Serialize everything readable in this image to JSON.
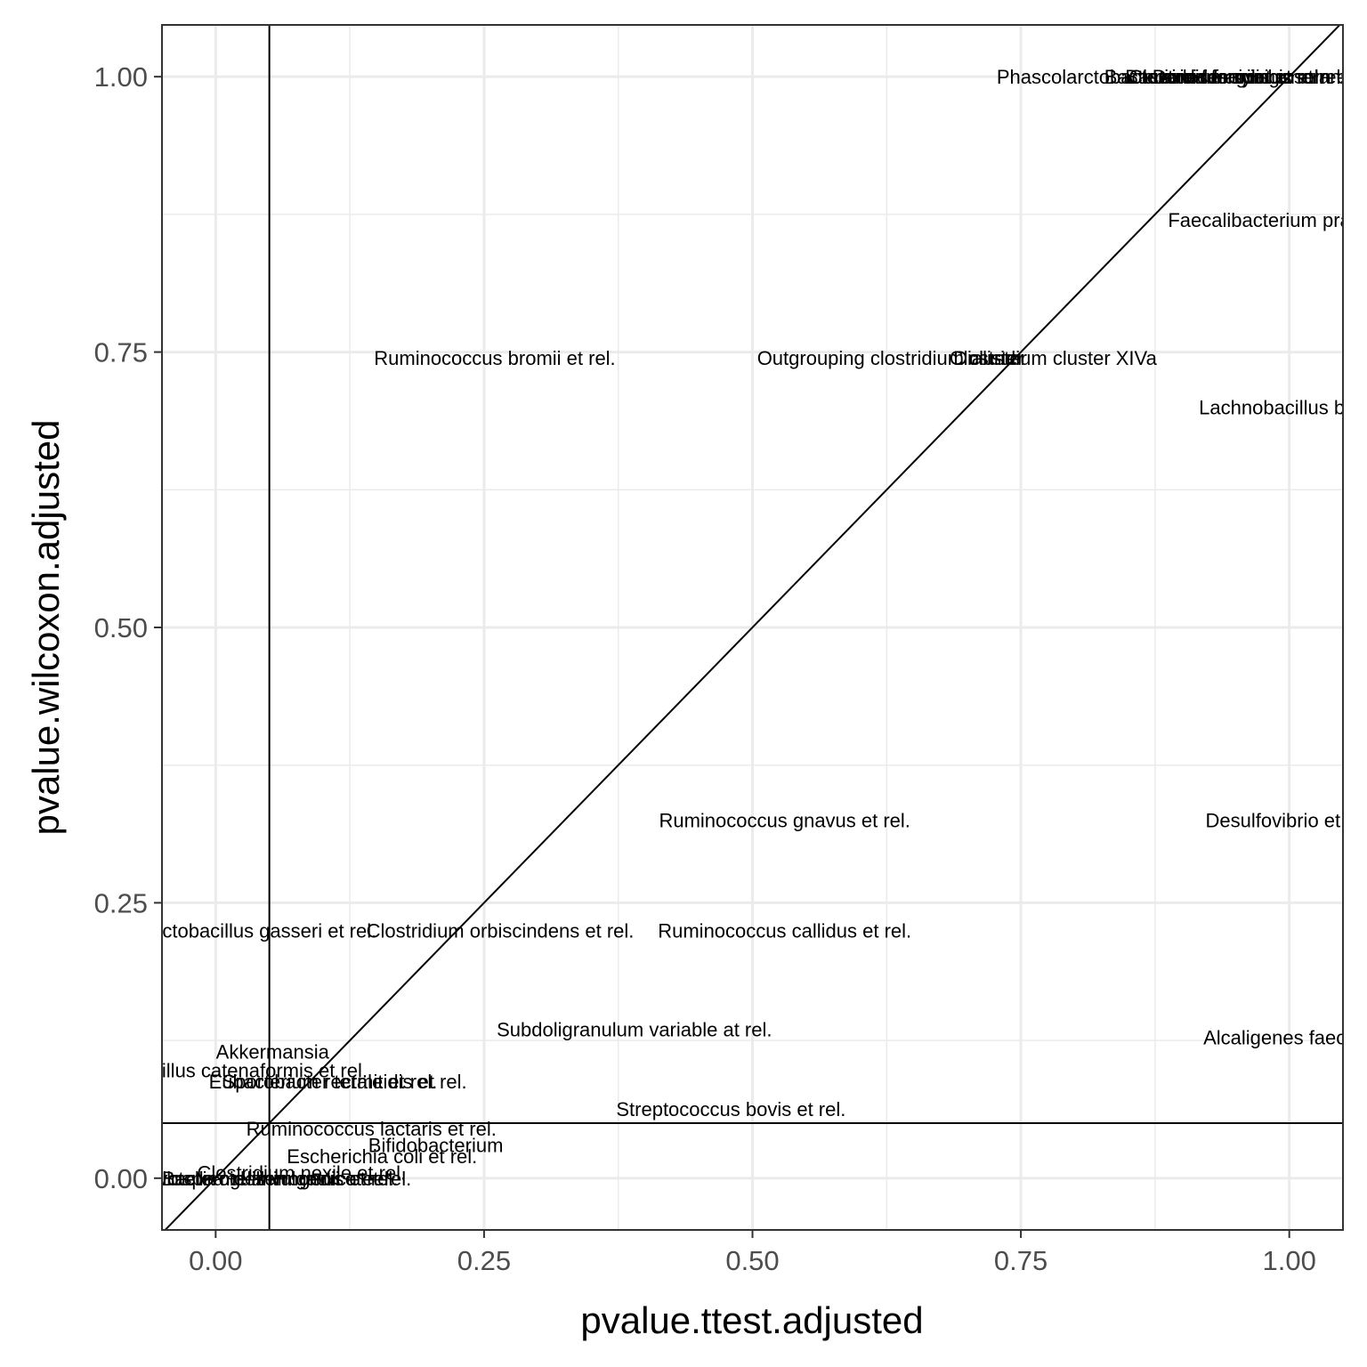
{
  "chart_data": {
    "type": "scatter",
    "xlabel": "pvalue.ttest.adjusted",
    "ylabel": "pvalue.wilcoxon.adjusted",
    "xlim": [
      -0.05,
      1.05
    ],
    "ylim": [
      -0.047,
      1.047
    ],
    "x_ticks": [
      0.0,
      0.25,
      0.5,
      0.75,
      1.0
    ],
    "y_ticks": [
      0.0,
      0.25,
      0.5,
      0.75,
      1.0
    ],
    "x_tick_labels": [
      "0.00",
      "0.25",
      "0.50",
      "0.75",
      "1.00"
    ],
    "y_tick_labels": [
      "0.00",
      "0.25",
      "0.50",
      "0.75",
      "1.00"
    ],
    "grid": true,
    "theme": "bw",
    "reference_lines": {
      "vline_x": 0.05,
      "hline_y": 0.05,
      "diagonal": true
    },
    "points": [
      {
        "label": "Ruminococcus bromii et rel.",
        "x": 0.26,
        "y": 0.745
      },
      {
        "label": "Outgrouping clostridium cluster",
        "x": 0.63,
        "y": 0.745
      },
      {
        "label": "Dialister",
        "x": 0.72,
        "y": 0.745
      },
      {
        "label": "Clostridium cluster XIVa",
        "x": 0.78,
        "y": 0.745
      },
      {
        "label": "Lachnobacillus bovis",
        "x": 1.0,
        "y": 0.7
      },
      {
        "label": "Faecalibacterium prausnitzii",
        "x": 1.0,
        "y": 0.87
      },
      {
        "label": "Ruminococcus gnavus et rel.",
        "x": 0.53,
        "y": 0.325
      },
      {
        "label": "Desulfovibrio et rel.",
        "x": 1.0,
        "y": 0.325
      },
      {
        "label": "Lactobacillus gasseri et rel.",
        "x": 0.04,
        "y": 0.225
      },
      {
        "label": "Clostridium orbiscindens et rel.",
        "x": 0.265,
        "y": 0.225
      },
      {
        "label": "Ruminococcus callidus et rel.",
        "x": 0.53,
        "y": 0.225
      },
      {
        "label": "Subdoligranulum variable at rel.",
        "x": 0.39,
        "y": 0.135
      },
      {
        "label": "Alcaligenes faecalis",
        "x": 1.0,
        "y": 0.128
      },
      {
        "label": "Akkermansia",
        "x": 0.053,
        "y": 0.115
      },
      {
        "label": "Bacillus catenaformis et rel.",
        "x": 0.03,
        "y": 0.098
      },
      {
        "label": "Sporobacter termitidis et rel.",
        "x": 0.12,
        "y": 0.088
      },
      {
        "label": "Eubacterium rectale et rel.",
        "x": 0.1,
        "y": 0.088
      },
      {
        "label": "Streptococcus bovis et rel.",
        "x": 0.48,
        "y": 0.063
      },
      {
        "label": "Ruminococcus lactaris et rel.",
        "x": 0.145,
        "y": 0.045
      },
      {
        "label": "Bifidobacterium",
        "x": 0.205,
        "y": 0.03
      },
      {
        "label": "Escherichia coli et rel.",
        "x": 0.155,
        "y": 0.02
      },
      {
        "label": "Clostridium nexile et rel.",
        "x": 0.08,
        "y": 0.005
      },
      {
        "label": "Prevotella melaninogenica et rel.",
        "x": 0.05,
        "y": 0.0
      },
      {
        "label": "Bacteroides vulgatus et rel.",
        "x": 0.06,
        "y": 0.0
      },
      {
        "label": "Oscillospira guillermondii et rel.",
        "x": 0.04,
        "y": 0.0
      },
      {
        "label": "Phascolarctobacterium faecium et rel.",
        "x": 0.88,
        "y": 1.0
      },
      {
        "label": "Bacteroides fragilis et rel.",
        "x": 0.93,
        "y": 1.0
      },
      {
        "label": "Bacteroides ovatus et rel.",
        "x": 0.95,
        "y": 1.0
      },
      {
        "label": "Clostridium symbiosum et rel.",
        "x": 0.97,
        "y": 1.0
      },
      {
        "label": "Dorea formicigenerans et rel.",
        "x": 0.99,
        "y": 1.0
      }
    ]
  }
}
